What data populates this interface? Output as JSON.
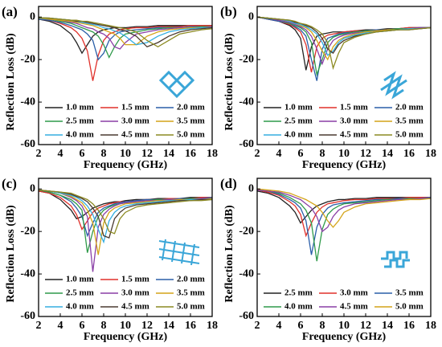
{
  "chart_data": [
    {
      "type": "line",
      "label": "(a)",
      "xlabel": "Frequency (GHz)",
      "ylabel": "Reflection Loss (dB)",
      "x": [
        2,
        3,
        4,
        5,
        5.5,
        6,
        6.5,
        7,
        7.5,
        8,
        8.5,
        9,
        9.5,
        10,
        11,
        12,
        13,
        14,
        15,
        16,
        17,
        18
      ],
      "xlim": [
        2,
        18
      ],
      "xticks": [
        2,
        4,
        6,
        8,
        10,
        12,
        14,
        16,
        18
      ],
      "ylim": [
        -60,
        5
      ],
      "yticks": [
        0,
        -20,
        -40,
        -60
      ],
      "series": [
        {
          "name": "1.0 mm",
          "color": "#222222",
          "values": [
            -1,
            -2,
            -4,
            -8,
            -12,
            -17,
            -13,
            -9,
            -7,
            -6,
            -5.5,
            -5,
            -5,
            -5,
            -4.5,
            -4.5,
            -4,
            -4,
            -4,
            -4,
            -4,
            -4
          ]
        },
        {
          "name": "1.5 mm",
          "color": "#e0302a",
          "values": [
            -1,
            -1.5,
            -3,
            -5,
            -7,
            -10,
            -16,
            -30,
            -18,
            -11,
            -8,
            -7,
            -6,
            -5.5,
            -5,
            -5,
            -4.5,
            -4.5,
            -4.5,
            -4,
            -4,
            -4
          ]
        },
        {
          "name": "2.0 mm",
          "color": "#2a5ea8",
          "values": [
            -1,
            -1.5,
            -2.5,
            -4,
            -5,
            -6,
            -8,
            -11,
            -20,
            -17,
            -11,
            -8.5,
            -7,
            -6.5,
            -6,
            -5.5,
            -5,
            -5,
            -5,
            -4.5,
            -4.5,
            -4.5
          ]
        },
        {
          "name": "2.5 mm",
          "color": "#2f9a4a",
          "values": [
            -0.5,
            -1,
            -2,
            -3,
            -4,
            -5,
            -6,
            -7,
            -9,
            -13,
            -19,
            -14,
            -10,
            -8,
            -7,
            -6,
            -5.5,
            -5,
            -5,
            -5,
            -4.5,
            -4.5
          ]
        },
        {
          "name": "3.0 mm",
          "color": "#8a3fa6",
          "values": [
            -0.5,
            -1,
            -1.5,
            -2.5,
            -3,
            -4,
            -5,
            -5.5,
            -7,
            -8,
            -10,
            -14,
            -15,
            -12,
            -8,
            -7,
            -6,
            -5.5,
            -5,
            -5,
            -5,
            -4.5
          ]
        },
        {
          "name": "3.5 mm",
          "color": "#d4a418",
          "values": [
            -0.5,
            -1,
            -1.5,
            -2,
            -2.5,
            -3,
            -3.5,
            -4,
            -5,
            -6,
            -7,
            -8,
            -10,
            -13,
            -13,
            -9,
            -7,
            -6,
            -5.5,
            -5,
            -5,
            -5
          ]
        },
        {
          "name": "4.0 mm",
          "color": "#35aee0",
          "values": [
            -0.5,
            -0.5,
            -1,
            -1.5,
            -2,
            -2.5,
            -3,
            -3.5,
            -4,
            -5,
            -5.5,
            -6.5,
            -7.5,
            -9,
            -13,
            -12,
            -9,
            -7,
            -6,
            -5.5,
            -5,
            -5
          ]
        },
        {
          "name": "4.5 mm",
          "color": "#4a3a30",
          "values": [
            -0.3,
            -0.5,
            -1,
            -1.5,
            -2,
            -2,
            -2.5,
            -3,
            -3.5,
            -4,
            -4.5,
            -5,
            -6,
            -6.5,
            -9,
            -14,
            -12,
            -9,
            -7,
            -6,
            -5.5,
            -5
          ]
        },
        {
          "name": "5.0 mm",
          "color": "#8c8a22",
          "values": [
            -0.3,
            -0.5,
            -1,
            -1.5,
            -1.5,
            -2,
            -2,
            -2.5,
            -3,
            -3.5,
            -4,
            -4.5,
            -5,
            -5.5,
            -7,
            -11,
            -14,
            -11,
            -8,
            -7,
            -6,
            -5.5
          ]
        }
      ]
    },
    {
      "type": "line",
      "label": "(b)",
      "xlabel": "Frequency (GHz)",
      "ylabel": "Reflection Loss (dB)",
      "x": [
        2,
        3,
        4,
        5,
        5.5,
        6,
        6.5,
        7,
        7.5,
        8,
        8.5,
        9,
        9.5,
        10,
        11,
        12,
        13,
        14,
        15,
        16,
        17,
        18
      ],
      "xlim": [
        2,
        18
      ],
      "xticks": [
        2,
        4,
        6,
        8,
        10,
        12,
        14,
        16,
        18
      ],
      "ylim": [
        -60,
        5
      ],
      "yticks": [
        0,
        -20,
        -40,
        -60
      ],
      "series": [
        {
          "name": "1.0 mm",
          "color": "#222222",
          "values": [
            0,
            -1,
            -2,
            -4,
            -6,
            -10,
            -25,
            -14,
            -9,
            -8,
            -7.5,
            -7,
            -7,
            -7,
            -6.5,
            -6,
            -6,
            -5.5,
            -5.5,
            -5,
            -5,
            -5
          ]
        },
        {
          "name": "1.5 mm",
          "color": "#e0302a",
          "values": [
            0,
            -1,
            -2,
            -3.5,
            -5,
            -7,
            -13,
            -26,
            -14,
            -10,
            -8.5,
            -8,
            -7.5,
            -7,
            -6.5,
            -6.5,
            -6,
            -6,
            -5.5,
            -5,
            -5,
            -5
          ]
        },
        {
          "name": "2.0 mm",
          "color": "#2a5ea8",
          "values": [
            0,
            -1,
            -2,
            -3,
            -4.5,
            -6,
            -9,
            -20,
            -30,
            -15,
            -10,
            -9,
            -8,
            -7.5,
            -7,
            -6.5,
            -6,
            -6,
            -5.5,
            -5.5,
            -5,
            -5
          ]
        },
        {
          "name": "2.5 mm",
          "color": "#2f9a4a",
          "values": [
            0,
            -0.5,
            -1.5,
            -3,
            -4,
            -5,
            -7,
            -12,
            -27,
            -20,
            -12,
            -9.5,
            -8.5,
            -8,
            -7,
            -6.5,
            -6.5,
            -6,
            -5.5,
            -5.5,
            -5,
            -5
          ]
        },
        {
          "name": "3.0 mm",
          "color": "#8a3fa6",
          "values": [
            0,
            -0.5,
            -1.5,
            -2.5,
            -3.5,
            -4.5,
            -6,
            -9,
            -15,
            -22,
            -15,
            -11,
            -9.5,
            -8.5,
            -7.5,
            -7,
            -6.5,
            -6,
            -6,
            -5.5,
            -5,
            -5
          ]
        },
        {
          "name": "3.5 mm",
          "color": "#d4a418",
          "values": [
            0,
            -0.5,
            -1,
            -2,
            -3,
            -4,
            -5,
            -7,
            -11,
            -16,
            -20,
            -14,
            -11,
            -9.5,
            -8,
            -7,
            -6.5,
            -6,
            -6,
            -5.5,
            -5.5,
            -5
          ]
        },
        {
          "name": "4.0 mm",
          "color": "#35aee0",
          "values": [
            0,
            -0.5,
            -1,
            -2,
            -3,
            -3.5,
            -4.5,
            -6,
            -8,
            -12,
            -18,
            -16,
            -12,
            -10,
            -8.5,
            -7.5,
            -7,
            -6.5,
            -6,
            -5.5,
            -5.5,
            -5
          ]
        },
        {
          "name": "4.5 mm",
          "color": "#4a3a30",
          "values": [
            0,
            -0.5,
            -1,
            -1.5,
            -2.5,
            -3,
            -4,
            -5,
            -7,
            -10,
            -15,
            -17,
            -13,
            -11,
            -9,
            -8,
            -7,
            -6.5,
            -6,
            -6,
            -5.5,
            -5
          ]
        },
        {
          "name": "5.0 mm",
          "color": "#8c8a22",
          "values": [
            0,
            -0.5,
            -1,
            -1.5,
            -2,
            -3,
            -3.5,
            -4.5,
            -6,
            -8,
            -12,
            -24,
            -17,
            -12,
            -9.5,
            -8,
            -7,
            -6.5,
            -6,
            -6,
            -5.5,
            -5
          ]
        }
      ]
    },
    {
      "type": "line",
      "label": "(c)",
      "xlabel": "Frequency (GHz)",
      "ylabel": "Reflection Loss (dB)",
      "x": [
        2,
        3,
        4,
        5,
        5.5,
        6,
        6.5,
        7,
        7.5,
        8,
        8.5,
        9,
        9.5,
        10,
        11,
        12,
        13,
        14,
        15,
        16,
        17,
        18
      ],
      "xlim": [
        2,
        18
      ],
      "xticks": [
        2,
        4,
        6,
        8,
        10,
        12,
        14,
        16,
        18
      ],
      "ylim": [
        -60,
        5
      ],
      "yticks": [
        0,
        -20,
        -40,
        -60
      ],
      "series": [
        {
          "name": "1.0 mm",
          "color": "#222222",
          "values": [
            -1,
            -2,
            -5,
            -10,
            -14,
            -13,
            -11,
            -9,
            -8,
            -7,
            -6.5,
            -6,
            -6,
            -5.5,
            -5,
            -5,
            -4.5,
            -4.5,
            -4.5,
            -4,
            -4,
            -4
          ]
        },
        {
          "name": "1.5 mm",
          "color": "#e0302a",
          "values": [
            -1,
            -2,
            -4,
            -8,
            -12,
            -19,
            -15,
            -11,
            -9,
            -8,
            -7,
            -6.5,
            -6,
            -6,
            -5.5,
            -5,
            -5,
            -4.5,
            -4.5,
            -4.5,
            -4,
            -4
          ]
        },
        {
          "name": "2.0 mm",
          "color": "#2a5ea8",
          "values": [
            -0.5,
            -1.5,
            -3,
            -6,
            -9,
            -13,
            -22,
            -16,
            -11,
            -9,
            -8,
            -7,
            -6.5,
            -6,
            -5.5,
            -5,
            -5,
            -5,
            -4.5,
            -4.5,
            -4.5,
            -4
          ]
        },
        {
          "name": "2.5 mm",
          "color": "#2f9a4a",
          "values": [
            -0.5,
            -1.5,
            -3,
            -5,
            -7,
            -10,
            -30,
            -20,
            -13,
            -10,
            -8.5,
            -7.5,
            -7,
            -6.5,
            -6,
            -5.5,
            -5,
            -5,
            -5,
            -4.5,
            -4.5,
            -4.5
          ]
        },
        {
          "name": "3.0 mm",
          "color": "#8a3fa6",
          "values": [
            -0.5,
            -1,
            -2,
            -4,
            -5.5,
            -8,
            -13,
            -39,
            -18,
            -12,
            -9.5,
            -8,
            -7,
            -6.5,
            -6,
            -5.5,
            -5.5,
            -5,
            -5,
            -5,
            -4.5,
            -4.5
          ]
        },
        {
          "name": "3.5 mm",
          "color": "#d4a418",
          "values": [
            -0.5,
            -1,
            -2,
            -3.5,
            -5,
            -6.5,
            -10,
            -16,
            -31,
            -16,
            -11,
            -9,
            -8,
            -7,
            -6.5,
            -6,
            -5.5,
            -5.5,
            -5,
            -5,
            -5,
            -4.5
          ]
        },
        {
          "name": "4.0 mm",
          "color": "#35aee0",
          "values": [
            -0.5,
            -1,
            -2,
            -3,
            -4,
            -5.5,
            -8,
            -12,
            -19,
            -25,
            -15,
            -11,
            -9,
            -8,
            -7,
            -6.5,
            -6,
            -5.5,
            -5.5,
            -5,
            -5,
            -5
          ]
        },
        {
          "name": "4.5 mm",
          "color": "#4a3a30",
          "values": [
            -0.5,
            -1,
            -1.5,
            -2.5,
            -3.5,
            -4.5,
            -6,
            -9,
            -13,
            -22,
            -23,
            -14,
            -11,
            -9,
            -7.5,
            -7,
            -6.5,
            -6,
            -5.5,
            -5.5,
            -5,
            -5
          ]
        },
        {
          "name": "5.0 mm",
          "color": "#8c8a22",
          "values": [
            -0.5,
            -1,
            -1.5,
            -2,
            -3,
            -4,
            -5,
            -7,
            -10,
            -14,
            -20,
            -21,
            -14,
            -11,
            -8.5,
            -7.5,
            -7,
            -6.5,
            -6,
            -5.5,
            -5.5,
            -5
          ]
        }
      ]
    },
    {
      "type": "line",
      "label": "(d)",
      "xlabel": "Frequency (GHz)",
      "ylabel": "Reflection Loss (dB)",
      "x": [
        2,
        3,
        4,
        5,
        5.5,
        6,
        6.5,
        7,
        7.5,
        8,
        8.5,
        9,
        9.5,
        10,
        11,
        12,
        13,
        14,
        15,
        16,
        17,
        18
      ],
      "xlim": [
        2,
        18
      ],
      "xticks": [
        2,
        4,
        6,
        8,
        10,
        12,
        14,
        16,
        18
      ],
      "ylim": [
        -60,
        5
      ],
      "yticks": [
        0,
        -20,
        -40,
        -60
      ],
      "series": [
        {
          "name": "2.5 mm",
          "color": "#222222",
          "values": [
            -1,
            -2,
            -4,
            -8,
            -11,
            -16,
            -13,
            -10,
            -8,
            -7,
            -6,
            -5.5,
            -5,
            -5,
            -4.5,
            -4.5,
            -4,
            -4,
            -4,
            -4,
            -4,
            -4
          ]
        },
        {
          "name": "3.0 mm",
          "color": "#e0302a",
          "values": [
            -0.5,
            -1.5,
            -3,
            -6,
            -8,
            -12,
            -22,
            -16,
            -11,
            -8.5,
            -7,
            -6.5,
            -6,
            -5.5,
            -5,
            -5,
            -4.5,
            -4.5,
            -4.5,
            -4,
            -4,
            -4
          ]
        },
        {
          "name": "3.5 mm",
          "color": "#2a5ea8",
          "values": [
            -0.5,
            -1,
            -2.5,
            -5,
            -6.5,
            -9,
            -15,
            -31,
            -18,
            -12,
            -9,
            -7.5,
            -7,
            -6.5,
            -6,
            -5.5,
            -5,
            -5,
            -4.5,
            -4.5,
            -4.5,
            -4
          ]
        },
        {
          "name": "4.0 mm",
          "color": "#2f9a4a",
          "values": [
            -0.5,
            -1,
            -2,
            -4,
            -5.5,
            -7,
            -10,
            -16,
            -34,
            -19,
            -12,
            -9.5,
            -8,
            -7,
            -6.5,
            -6,
            -5.5,
            -5,
            -5,
            -4.5,
            -4.5,
            -4.5
          ]
        },
        {
          "name": "4.5 mm",
          "color": "#8a3fa6",
          "values": [
            -0.5,
            -1,
            -1.5,
            -3,
            -4,
            -5,
            -7,
            -9,
            -13,
            -20,
            -18,
            -13,
            -10,
            -8.5,
            -7,
            -6.5,
            -6,
            -5.5,
            -5,
            -5,
            -4.5,
            -4.5
          ]
        },
        {
          "name": "5.0 mm",
          "color": "#d4a418",
          "values": [
            0,
            -0.5,
            -1,
            -2,
            -3,
            -4,
            -5,
            -6.5,
            -8,
            -11,
            -15,
            -18,
            -15,
            -11,
            -8.5,
            -7,
            -6.5,
            -6,
            -5.5,
            -5,
            -5,
            -4.5
          ]
        }
      ]
    }
  ]
}
